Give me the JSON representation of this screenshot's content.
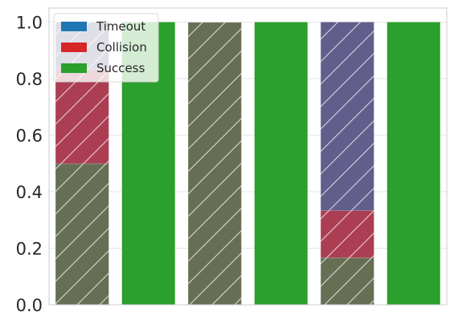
{
  "chart_data": {
    "type": "bar",
    "stacked": true,
    "categories": [
      "",
      "",
      "",
      "",
      "",
      ""
    ],
    "series": [
      {
        "name": "Success",
        "color": "#2ca02c",
        "values": [
          0.5,
          1.0,
          1.0,
          1.0,
          0.167,
          1.0
        ]
      },
      {
        "name": "Collision",
        "color": "#d62728",
        "values": [
          0.333,
          0,
          0,
          0,
          0.167,
          0
        ]
      },
      {
        "name": "Timeout",
        "color": "#1f77b4",
        "values": [
          0.167,
          0,
          0,
          0,
          0.667,
          0
        ]
      }
    ],
    "hatched_bars": [
      0,
      2,
      4
    ],
    "hatch_overlay_color": "#8e4f6f",
    "hatch_alpha": 0.6,
    "title": "",
    "xlabel": "",
    "ylabel": "",
    "ylim": [
      0,
      1.05
    ],
    "yticks": [
      "0.0",
      "0.2",
      "0.4",
      "0.6",
      "0.8",
      "1.0"
    ],
    "grid": true,
    "legend": {
      "placement": "top-left",
      "entries": [
        "Timeout",
        "Collision",
        "Success"
      ]
    }
  }
}
